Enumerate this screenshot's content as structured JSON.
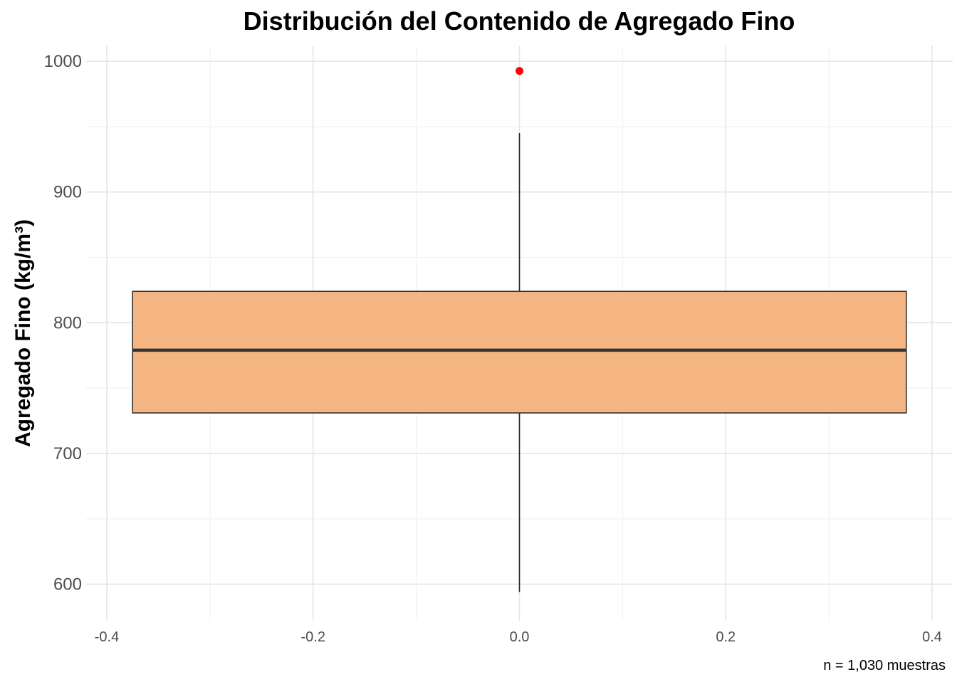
{
  "chart_data": {
    "type": "boxplot",
    "title": "Distribución del Contenido de Agregado Fino",
    "xlabel": "",
    "ylabel": "Agregado Fino (kg/m³)",
    "caption": "n = 1,030 muestras",
    "xlim": [
      -0.42,
      0.42
    ],
    "ylim": [
      572,
      1012
    ],
    "x_ticks": [
      -0.4,
      -0.2,
      0.0,
      0.2,
      0.4
    ],
    "x_tick_labels": [
      "-0.4",
      "-0.2",
      "0.0",
      "0.2",
      "0.4"
    ],
    "y_ticks": [
      600,
      700,
      800,
      900,
      1000
    ],
    "y_tick_labels": [
      "600",
      "700",
      "800",
      "900",
      "1000"
    ],
    "grid": true,
    "box": {
      "x_center": 0.0,
      "x_half_width": 0.375,
      "whisker_low": 594,
      "q1": 731,
      "median": 779,
      "q3": 824,
      "whisker_high": 945,
      "outliers": [
        992.6
      ]
    },
    "colors": {
      "box_fill": "#F5B582",
      "box_outline": "#333333",
      "median_line": "#333333",
      "whisker": "#222222",
      "outlier": "#FF0000",
      "grid_major": "#E5E5E5",
      "grid_minor": "#F2F2F2"
    }
  }
}
